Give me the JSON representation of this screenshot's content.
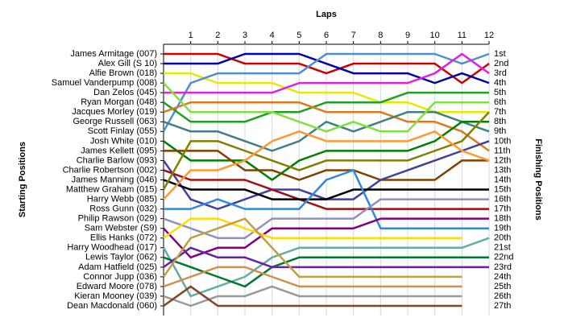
{
  "chart_data": {
    "type": "line",
    "x_label": "Laps",
    "y_label": "Starting Positions",
    "y2_label": "Finishing Positions",
    "x": [
      0,
      1,
      2,
      3,
      4,
      5,
      6,
      7,
      8,
      9,
      10,
      11,
      12
    ],
    "xlim": [
      0,
      12
    ],
    "xticks": [
      1,
      2,
      3,
      4,
      5,
      6,
      7,
      8,
      9,
      10,
      11,
      12
    ],
    "ylim": [
      27,
      1
    ],
    "yticks": [
      {
        "value": 1,
        "label": "1st"
      },
      {
        "value": 2,
        "label": "2nd"
      },
      {
        "value": 3,
        "label": "3rd"
      },
      {
        "value": 4,
        "label": "4th"
      },
      {
        "value": 5,
        "label": "5th"
      },
      {
        "value": 6,
        "label": "6th"
      },
      {
        "value": 7,
        "label": "7th"
      },
      {
        "value": 8,
        "label": "8th"
      },
      {
        "value": 9,
        "label": "9th"
      },
      {
        "value": 10,
        "label": "10th"
      },
      {
        "value": 11,
        "label": "11th"
      },
      {
        "value": 12,
        "label": "12th"
      },
      {
        "value": 13,
        "label": "13th"
      },
      {
        "value": 14,
        "label": "14th"
      },
      {
        "value": 15,
        "label": "15th"
      },
      {
        "value": 16,
        "label": "16th"
      },
      {
        "value": 17,
        "label": "17th"
      },
      {
        "value": 18,
        "label": "18th"
      },
      {
        "value": 19,
        "label": "19th"
      },
      {
        "value": 20,
        "label": "20th"
      },
      {
        "value": 21,
        "label": "21st"
      },
      {
        "value": 22,
        "label": "22nd"
      },
      {
        "value": 23,
        "label": "23rd"
      },
      {
        "value": 24,
        "label": "24th"
      },
      {
        "value": 25,
        "label": "25th"
      },
      {
        "value": 26,
        "label": "26th"
      },
      {
        "value": 27,
        "label": "27th"
      }
    ],
    "grid": true,
    "series": [
      {
        "name": "James Armitage (007)",
        "color": "#cc0000",
        "values": [
          1,
          1,
          1,
          2,
          2,
          2,
          3,
          2,
          2,
          2,
          2,
          4,
          2
        ]
      },
      {
        "name": "Alex Gill (S 10)",
        "color": "#0000aa",
        "values": [
          2,
          2,
          2,
          1,
          1,
          1,
          2,
          3,
          3,
          3,
          4,
          3,
          4
        ]
      },
      {
        "name": "Alfie Brown (018)",
        "color": "#e8e800",
        "values": [
          3,
          3,
          4,
          4,
          4,
          5,
          5,
          5,
          6,
          6,
          7,
          7,
          7
        ]
      },
      {
        "name": "Scott Finlay (055)",
        "color": "#4a90d9",
        "values": [
          9,
          4,
          3,
          3,
          3,
          3,
          1,
          1,
          1,
          1,
          1,
          2,
          1
        ]
      },
      {
        "name": "Dan Zelos (045)",
        "color": "#e020e0",
        "values": [
          5,
          5,
          5,
          5,
          5,
          4,
          4,
          4,
          4,
          4,
          3,
          1,
          3
        ]
      },
      {
        "name": "Ryan Morgan (048)",
        "color": "#20a020",
        "values": [
          6,
          8,
          8,
          8,
          7,
          7,
          6,
          6,
          6,
          5,
          5,
          5,
          5
        ]
      },
      {
        "name": "Jacques Morley (019)",
        "color": "#e07820",
        "values": [
          7,
          6,
          6,
          6,
          6,
          6,
          7,
          7,
          7,
          8,
          8,
          9,
          11
        ]
      },
      {
        "name": "George Russell (063)",
        "color": "#408080",
        "values": [
          8,
          9,
          9,
          10,
          11,
          10,
          8,
          9,
          8,
          7,
          7,
          8,
          9
        ]
      },
      {
        "name": "Samuel Vanderpump (008)",
        "color": "#80e040",
        "values": [
          4,
          7,
          7,
          7,
          7,
          8,
          9,
          8,
          9,
          9,
          6,
          6,
          6
        ]
      },
      {
        "name": "Josh White (010)",
        "color": "#008000",
        "values": [
          10,
          12,
          12,
          12,
          14,
          12,
          11,
          11,
          11,
          11,
          10,
          8,
          8
        ]
      },
      {
        "name": "James Kellett (095)",
        "color": "#804000",
        "values": [
          11,
          11,
          11,
          13,
          13,
          14,
          13,
          13,
          14,
          14,
          14,
          12,
          12
        ]
      },
      {
        "name": "Charlie Barlow (093)",
        "color": "#4040a0",
        "values": [
          12,
          16,
          17,
          16,
          15,
          15,
          16,
          16,
          14,
          13,
          12,
          11,
          10
        ]
      },
      {
        "name": "Charlie Robertson (002)",
        "color": "#a01010",
        "values": [
          13,
          14,
          14,
          14,
          15,
          16,
          17,
          17,
          17,
          17,
          17,
          17,
          17
        ]
      },
      {
        "name": "James Manning (046)",
        "color": "#000000",
        "values": [
          14,
          15,
          15,
          15,
          16,
          16,
          16,
          15,
          15,
          15,
          15,
          15,
          15
        ]
      },
      {
        "name": "Matthew Graham (015)",
        "color": "#808000",
        "values": [
          15,
          10,
          10,
          11,
          12,
          13,
          12,
          12,
          12,
          12,
          11,
          10,
          7
        ]
      },
      {
        "name": "Harry Webb (085)",
        "color": "#ff9933",
        "values": [
          16,
          13,
          13,
          12,
          10,
          9,
          10,
          10,
          10,
          10,
          9,
          11,
          12
        ]
      },
      {
        "name": "Ross Gunn (032)",
        "color": "#3388dd",
        "values": [
          17,
          17,
          16,
          17,
          17,
          17,
          14,
          13,
          19,
          19,
          19,
          19,
          19
        ]
      },
      {
        "name": "Philip Rawson (029)",
        "color": "#9090c0",
        "values": [
          18,
          19,
          20,
          20,
          18,
          18,
          18,
          18,
          16,
          16,
          16,
          16,
          16
        ]
      },
      {
        "name": "Sam Webster (S9)",
        "color": "#800080",
        "values": [
          19,
          22,
          21,
          21,
          19,
          19,
          19,
          19,
          18,
          18,
          18,
          18,
          18
        ]
      },
      {
        "name": "Ellis Hanks (072)",
        "color": "#ffdd00",
        "values": [
          20,
          18,
          18,
          19,
          20,
          20,
          20,
          20,
          20,
          20,
          20,
          20,
          null
        ]
      },
      {
        "name": "Harry Woodhead (017)",
        "color": "#66aaaa",
        "values": [
          21,
          26,
          25,
          24,
          22,
          21,
          21,
          21,
          21,
          21,
          21,
          21,
          20
        ]
      },
      {
        "name": "Lewis Taylor (062)",
        "color": "#007733",
        "values": [
          22,
          23,
          24,
          25,
          23,
          22,
          22,
          22,
          22,
          22,
          22,
          22,
          22
        ]
      },
      {
        "name": "Adam Hatfield (025)",
        "color": "#6622aa",
        "values": [
          23,
          21,
          22,
          22,
          23,
          23,
          23,
          23,
          23,
          23,
          23,
          23,
          23
        ]
      },
      {
        "name": "Connor Jupp (036)",
        "color": "#c0a040",
        "values": [
          24,
          20,
          19,
          18,
          21,
          24,
          24,
          24,
          24,
          24,
          24,
          24,
          null
        ]
      },
      {
        "name": "Edward Moore (078)",
        "color": "#d09050",
        "values": [
          25,
          24,
          23,
          23,
          24,
          25,
          25,
          25,
          25,
          25,
          25,
          25,
          null
        ]
      },
      {
        "name": "Kieran Mooney (039)",
        "color": "#999999",
        "values": [
          26,
          27,
          26,
          26,
          25,
          26,
          26,
          26,
          26,
          26,
          26,
          26,
          null
        ]
      },
      {
        "name": "Dean Macdonald (060)",
        "color": "#884422",
        "values": [
          27,
          25,
          27,
          27,
          27,
          27,
          27,
          27,
          27,
          27,
          27,
          27,
          null
        ]
      }
    ]
  }
}
